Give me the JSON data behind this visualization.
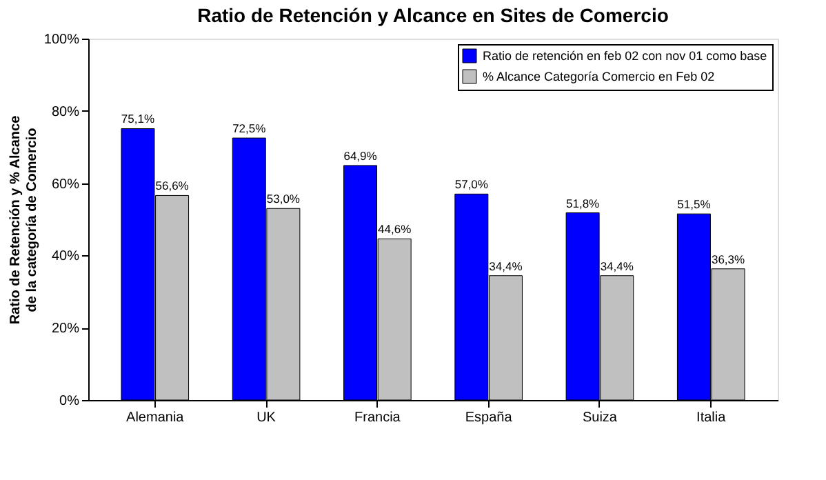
{
  "chart_data": {
    "type": "bar",
    "title": "Ratio de Retención y Alcance en Sites de Comercio",
    "ylabel": "Ratio de Retención y % Alcance de la categoría de Comercio",
    "categories": [
      "Alemania",
      "UK",
      "Francia",
      "España",
      "Suiza",
      "Italia"
    ],
    "series": [
      {
        "name": "Ratio de retención en feb 02 con nov 01 como base",
        "color": "#0000ff",
        "values": [
          75.1,
          72.5,
          64.9,
          57.0,
          51.8,
          51.5
        ],
        "value_labels": [
          "75,1%",
          "72,5%",
          "64,9%",
          "57,0%",
          "51,8%",
          "51,5%"
        ]
      },
      {
        "name": "% Alcance Categoría Comercio en Feb 02",
        "color": "#c0c0c0",
        "values": [
          56.6,
          53.0,
          44.6,
          34.4,
          34.4,
          36.3
        ],
        "value_labels": [
          "56,6%",
          "53,0%",
          "44,6%",
          "34,4%",
          "34,4%",
          "36,3%"
        ]
      }
    ],
    "ylim": [
      0,
      100
    ],
    "yticks": [
      {
        "value": 0,
        "label": "0%"
      },
      {
        "value": 20,
        "label": "20%"
      },
      {
        "value": 40,
        "label": "40%"
      },
      {
        "value": 60,
        "label": "60%"
      },
      {
        "value": 80,
        "label": "80%"
      },
      {
        "value": 100,
        "label": "100%"
      }
    ],
    "grid": false,
    "legend": "top right"
  }
}
